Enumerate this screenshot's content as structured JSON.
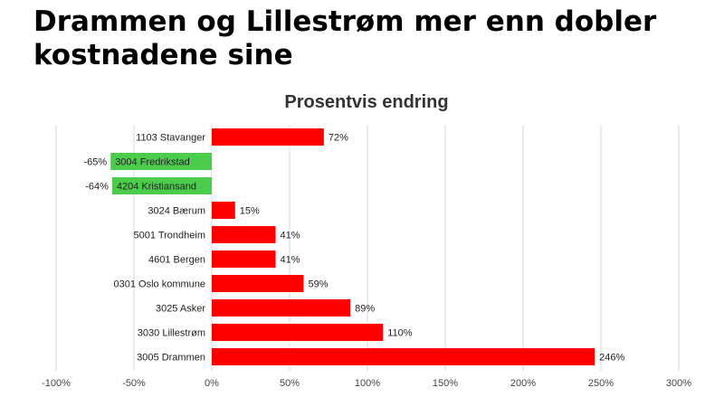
{
  "headline": {
    "line1": "Drammen og Lillestrøm mer enn dobler",
    "line2": "kostnadene sine"
  },
  "colors": {
    "positive": "#ff0000",
    "negative": "#4ccc4c",
    "grid": "#d9d9d9"
  },
  "chart_data": {
    "type": "bar",
    "orientation": "horizontal",
    "title": "Prosentvis endring",
    "xlabel": "",
    "ylabel": "",
    "xlim": [
      -100,
      300
    ],
    "ticks": [
      -100,
      -50,
      0,
      50,
      100,
      150,
      200,
      250,
      300
    ],
    "tick_labels": [
      "-100%",
      "-50%",
      "0%",
      "50%",
      "100%",
      "150%",
      "200%",
      "250%",
      "300%"
    ],
    "grid": true,
    "categories": [
      "1103 Stavanger",
      "3004 Fredrikstad",
      "4204 Kristiansand",
      "3024 Bærum",
      "5001 Trondheim",
      "4601 Bergen",
      "0301 Oslo kommune",
      "3025 Asker",
      "3030 Lillestrøm",
      "3005 Drammen"
    ],
    "values": [
      72,
      -65,
      -64,
      15,
      41,
      41,
      59,
      89,
      110,
      246
    ],
    "labels": [
      "72%",
      "-65%",
      "-64%",
      "15%",
      "41%",
      "41%",
      "59%",
      "89%",
      "110%",
      "246%"
    ]
  }
}
